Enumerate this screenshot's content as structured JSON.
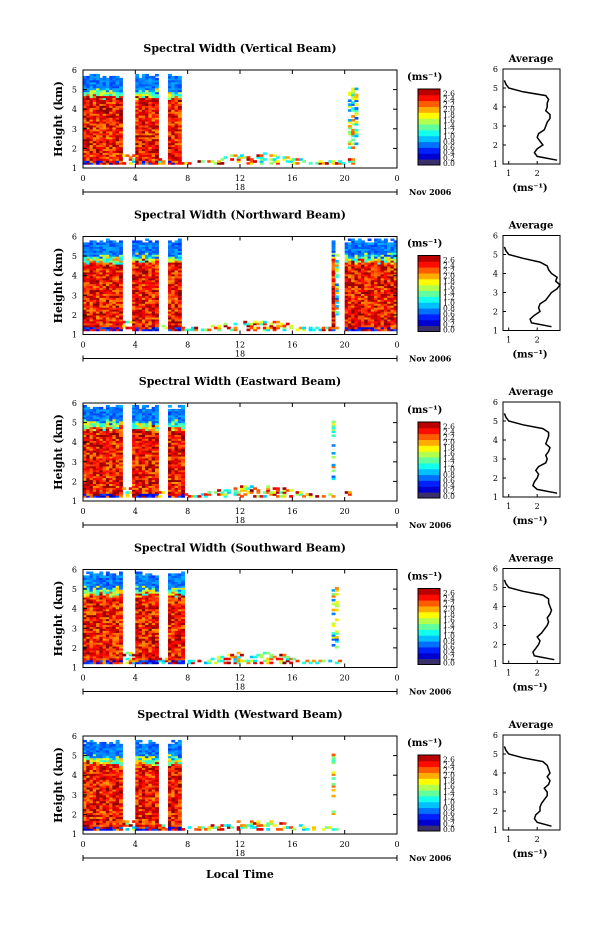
{
  "figure": {
    "xlabel_bottom": "Local Time",
    "date_label": "Nov 2006",
    "day_label": "18",
    "colorbar_unit": "(ms⁻¹)",
    "avg_xlabel": "(ms⁻¹)",
    "avg_title": "Average"
  },
  "chart_data": [
    {
      "type": "heatmap",
      "title": "Spectral Width (Vertical Beam)",
      "ylabel": "Height (km)",
      "xlim": [
        0,
        24
      ],
      "ylim": [
        1,
        6
      ],
      "xticks": [
        "0",
        "4",
        "8",
        "12",
        "16",
        "20",
        "0"
      ],
      "yticks": [
        "1",
        "2",
        "3",
        "4",
        "5",
        "6"
      ],
      "colorbar": {
        "range": [
          0.0,
          2.6
        ],
        "ticks": [
          "2.6",
          "2.4",
          "2.2",
          "2.0",
          "1.8",
          "1.6",
          "1.4",
          "1.2",
          "1.0",
          "0.8",
          "0.6",
          "0.4",
          "0.2",
          "0.0"
        ]
      },
      "features": {
        "cloud_top_km": 5.2,
        "gaps": [
          [
            3.0,
            3.8
          ],
          [
            5.6,
            6.3
          ],
          [
            7.5,
            24.0
          ]
        ],
        "echo_tail": [
          [
            20.2,
            21.0
          ]
        ],
        "low_layer_to": 20.6,
        "low_layer_h": 1.7
      },
      "average": {
        "title": "Average",
        "xlim": [
          0.8,
          2.8
        ],
        "xticks": [
          "1",
          "2"
        ],
        "ylim": [
          1,
          6
        ],
        "profile": [
          [
            1.2,
            2.7
          ],
          [
            1.4,
            2.0
          ],
          [
            1.6,
            1.9
          ],
          [
            1.8,
            2.0
          ],
          [
            2.0,
            2.2
          ],
          [
            2.2,
            2.1
          ],
          [
            2.4,
            2.0
          ],
          [
            2.6,
            2.05
          ],
          [
            2.8,
            2.25
          ],
          [
            3.0,
            2.3
          ],
          [
            3.2,
            2.35
          ],
          [
            3.4,
            2.45
          ],
          [
            3.6,
            2.45
          ],
          [
            3.8,
            2.3
          ],
          [
            4.0,
            2.35
          ],
          [
            4.2,
            2.35
          ],
          [
            4.4,
            2.4
          ],
          [
            4.6,
            2.3
          ],
          [
            4.8,
            1.5
          ],
          [
            5.0,
            1.0
          ],
          [
            5.2,
            0.9
          ],
          [
            5.4,
            0.85
          ]
        ]
      }
    },
    {
      "type": "heatmap",
      "title": "Spectral Width (Northward Beam)",
      "ylabel": "Height (km)",
      "xlim": [
        0,
        24
      ],
      "ylim": [
        1,
        6
      ],
      "xticks": [
        "0",
        "4",
        "8",
        "12",
        "16",
        "20",
        "0"
      ],
      "yticks": [
        "1",
        "2",
        "3",
        "4",
        "5",
        "6"
      ],
      "colorbar": {
        "range": [
          0.0,
          2.6
        ],
        "ticks": [
          "2.6",
          "2.4",
          "2.2",
          "2.0",
          "1.8",
          "1.6",
          "1.4",
          "1.2",
          "1.0",
          "0.8",
          "0.6",
          "0.4",
          "0.2",
          "0.0"
        ]
      },
      "features": {
        "cloud_top_km": 5.3,
        "gaps": [
          [
            3.0,
            3.6
          ],
          [
            5.7,
            6.3
          ],
          [
            7.5,
            18.8
          ],
          [
            19.2,
            19.8
          ]
        ],
        "echo_tail": [
          [
            18.8,
            19.3
          ]
        ],
        "low_layer_to": 19.5,
        "low_layer_h": 1.6
      },
      "average": {
        "title": "Average",
        "xlim": [
          0.8,
          2.8
        ],
        "xticks": [
          "1",
          "2"
        ],
        "ylim": [
          1,
          6
        ],
        "profile": [
          [
            1.2,
            2.5
          ],
          [
            1.4,
            1.8
          ],
          [
            1.6,
            1.75
          ],
          [
            1.8,
            1.9
          ],
          [
            2.0,
            2.1
          ],
          [
            2.2,
            2.05
          ],
          [
            2.4,
            2.1
          ],
          [
            2.6,
            2.3
          ],
          [
            2.8,
            2.4
          ],
          [
            3.0,
            2.5
          ],
          [
            3.2,
            2.7
          ],
          [
            3.4,
            2.8
          ],
          [
            3.6,
            2.65
          ],
          [
            3.8,
            2.7
          ],
          [
            4.0,
            2.5
          ],
          [
            4.2,
            2.4
          ],
          [
            4.4,
            2.35
          ],
          [
            4.6,
            2.1
          ],
          [
            4.8,
            1.5
          ],
          [
            5.0,
            1.0
          ],
          [
            5.2,
            0.9
          ],
          [
            5.4,
            0.85
          ]
        ]
      }
    },
    {
      "type": "heatmap",
      "title": "Spectral Width (Eastward Beam)",
      "ylabel": "Height (km)",
      "xlim": [
        0,
        24
      ],
      "ylim": [
        1,
        6
      ],
      "xticks": [
        "0",
        "4",
        "8",
        "12",
        "16",
        "20",
        "0"
      ],
      "yticks": [
        "1",
        "2",
        "3",
        "4",
        "5",
        "6"
      ],
      "colorbar": {
        "range": [
          0.0,
          2.6
        ],
        "ticks": [
          "2.6",
          "2.4",
          "2.2",
          "2.0",
          "1.8",
          "1.6",
          "1.4",
          "1.2",
          "1.0",
          "0.8",
          "0.6",
          "0.4",
          "0.2",
          "0.0"
        ]
      },
      "features": {
        "cloud_top_km": 5.3,
        "gaps": [
          [
            3.0,
            3.6
          ],
          [
            5.7,
            6.5
          ],
          [
            7.7,
            24.0
          ]
        ],
        "echo_tail": [
          [
            18.8,
            19.2
          ]
        ],
        "low_layer_to": 20.5,
        "low_layer_h": 1.9
      },
      "average": {
        "title": "Average",
        "xlim": [
          0.8,
          2.8
        ],
        "xticks": [
          "1",
          "2"
        ],
        "ylim": [
          1,
          6
        ],
        "profile": [
          [
            1.2,
            2.7
          ],
          [
            1.4,
            2.0
          ],
          [
            1.6,
            1.85
          ],
          [
            1.8,
            1.9
          ],
          [
            2.0,
            2.0
          ],
          [
            2.2,
            2.05
          ],
          [
            2.4,
            1.95
          ],
          [
            2.6,
            2.05
          ],
          [
            2.8,
            2.3
          ],
          [
            3.0,
            2.35
          ],
          [
            3.2,
            2.3
          ],
          [
            3.4,
            2.4
          ],
          [
            3.6,
            2.45
          ],
          [
            3.8,
            2.3
          ],
          [
            4.0,
            2.35
          ],
          [
            4.2,
            2.4
          ],
          [
            4.4,
            2.4
          ],
          [
            4.6,
            2.2
          ],
          [
            4.8,
            1.5
          ],
          [
            5.0,
            1.0
          ],
          [
            5.2,
            0.9
          ],
          [
            5.4,
            0.85
          ]
        ]
      }
    },
    {
      "type": "heatmap",
      "title": "Spectral Width (Southward Beam)",
      "ylabel": "Height (km)",
      "xlim": [
        0,
        24
      ],
      "ylim": [
        1,
        6
      ],
      "xticks": [
        "0",
        "4",
        "8",
        "12",
        "16",
        "20",
        "0"
      ],
      "yticks": [
        "1",
        "2",
        "3",
        "4",
        "5",
        "6"
      ],
      "colorbar": {
        "range": [
          0.0,
          2.6
        ],
        "ticks": [
          "2.6",
          "2.4",
          "2.2",
          "2.0",
          "1.8",
          "1.6",
          "1.4",
          "1.2",
          "1.0",
          "0.8",
          "0.6",
          "0.4",
          "0.2",
          "0.0"
        ]
      },
      "features": {
        "cloud_top_km": 5.3,
        "gaps": [
          [
            3.0,
            3.9
          ],
          [
            5.6,
            6.4
          ],
          [
            7.6,
            24.0
          ]
        ],
        "echo_tail": [
          [
            18.8,
            19.3
          ]
        ],
        "low_layer_to": 20.0,
        "low_layer_h": 2.0
      },
      "average": {
        "title": "Average",
        "xlim": [
          0.8,
          2.8
        ],
        "xticks": [
          "1",
          "2"
        ],
        "ylim": [
          1,
          6
        ],
        "profile": [
          [
            1.2,
            2.6
          ],
          [
            1.4,
            1.9
          ],
          [
            1.6,
            1.85
          ],
          [
            1.8,
            1.95
          ],
          [
            2.0,
            2.05
          ],
          [
            2.2,
            2.1
          ],
          [
            2.4,
            2.0
          ],
          [
            2.6,
            2.15
          ],
          [
            2.8,
            2.25
          ],
          [
            3.0,
            2.35
          ],
          [
            3.2,
            2.4
          ],
          [
            3.4,
            2.35
          ],
          [
            3.6,
            2.45
          ],
          [
            3.8,
            2.5
          ],
          [
            4.0,
            2.45
          ],
          [
            4.2,
            2.4
          ],
          [
            4.4,
            2.4
          ],
          [
            4.6,
            2.2
          ],
          [
            4.8,
            1.5
          ],
          [
            5.0,
            1.0
          ],
          [
            5.2,
            0.9
          ],
          [
            5.4,
            0.85
          ]
        ]
      }
    },
    {
      "type": "heatmap",
      "title": "Spectral Width (Westward Beam)",
      "ylabel": "Height (km)",
      "xlim": [
        0,
        24
      ],
      "ylim": [
        1,
        6
      ],
      "xticks": [
        "0",
        "4",
        "8",
        "12",
        "16",
        "20",
        "0"
      ],
      "yticks": [
        "1",
        "2",
        "3",
        "4",
        "5",
        "6"
      ],
      "colorbar": {
        "range": [
          0.0,
          2.6
        ],
        "ticks": [
          "2.6",
          "2.4",
          "2.2",
          "2.0",
          "1.8",
          "1.6",
          "1.4",
          "1.2",
          "1.0",
          "0.8",
          "0.6",
          "0.4",
          "0.2",
          "0.0"
        ]
      },
      "features": {
        "cloud_top_km": 5.2,
        "gaps": [
          [
            3.0,
            3.9
          ],
          [
            5.6,
            6.3
          ],
          [
            7.5,
            24.0
          ]
        ],
        "echo_tail": [
          [
            18.8,
            19.2
          ]
        ],
        "low_layer_to": 19.5,
        "low_layer_h": 1.5
      },
      "average": {
        "title": "Average",
        "xlim": [
          0.8,
          2.8
        ],
        "xticks": [
          "1",
          "2"
        ],
        "ylim": [
          1,
          6
        ],
        "profile": [
          [
            1.2,
            2.5
          ],
          [
            1.4,
            2.0
          ],
          [
            1.6,
            1.9
          ],
          [
            1.8,
            1.95
          ],
          [
            2.0,
            2.1
          ],
          [
            2.2,
            2.1
          ],
          [
            2.4,
            2.15
          ],
          [
            2.6,
            2.25
          ],
          [
            2.8,
            2.35
          ],
          [
            3.0,
            2.35
          ],
          [
            3.2,
            2.25
          ],
          [
            3.4,
            2.4
          ],
          [
            3.6,
            2.45
          ],
          [
            3.8,
            2.35
          ],
          [
            4.0,
            2.45
          ],
          [
            4.2,
            2.4
          ],
          [
            4.4,
            2.35
          ],
          [
            4.6,
            2.2
          ],
          [
            4.8,
            1.5
          ],
          [
            5.0,
            1.0
          ],
          [
            5.2,
            0.9
          ],
          [
            5.4,
            0.85
          ]
        ]
      }
    }
  ]
}
